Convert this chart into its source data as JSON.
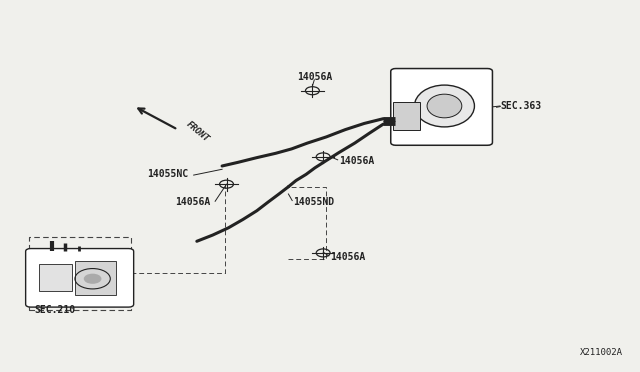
{
  "bg_color": "#f0f0ec",
  "diagram_id": "X211002A",
  "line_color": "#222222",
  "dashed_color": "#444444",
  "font_size": 7,
  "fig_bg": "#f0f0ec",
  "sec363_label": "SEC.363",
  "sec210_label": "SEC.210",
  "front_label": "FRONT",
  "part_14056A": "14056A",
  "part_14055NC": "14055NC",
  "part_14055ND": "14055ND"
}
